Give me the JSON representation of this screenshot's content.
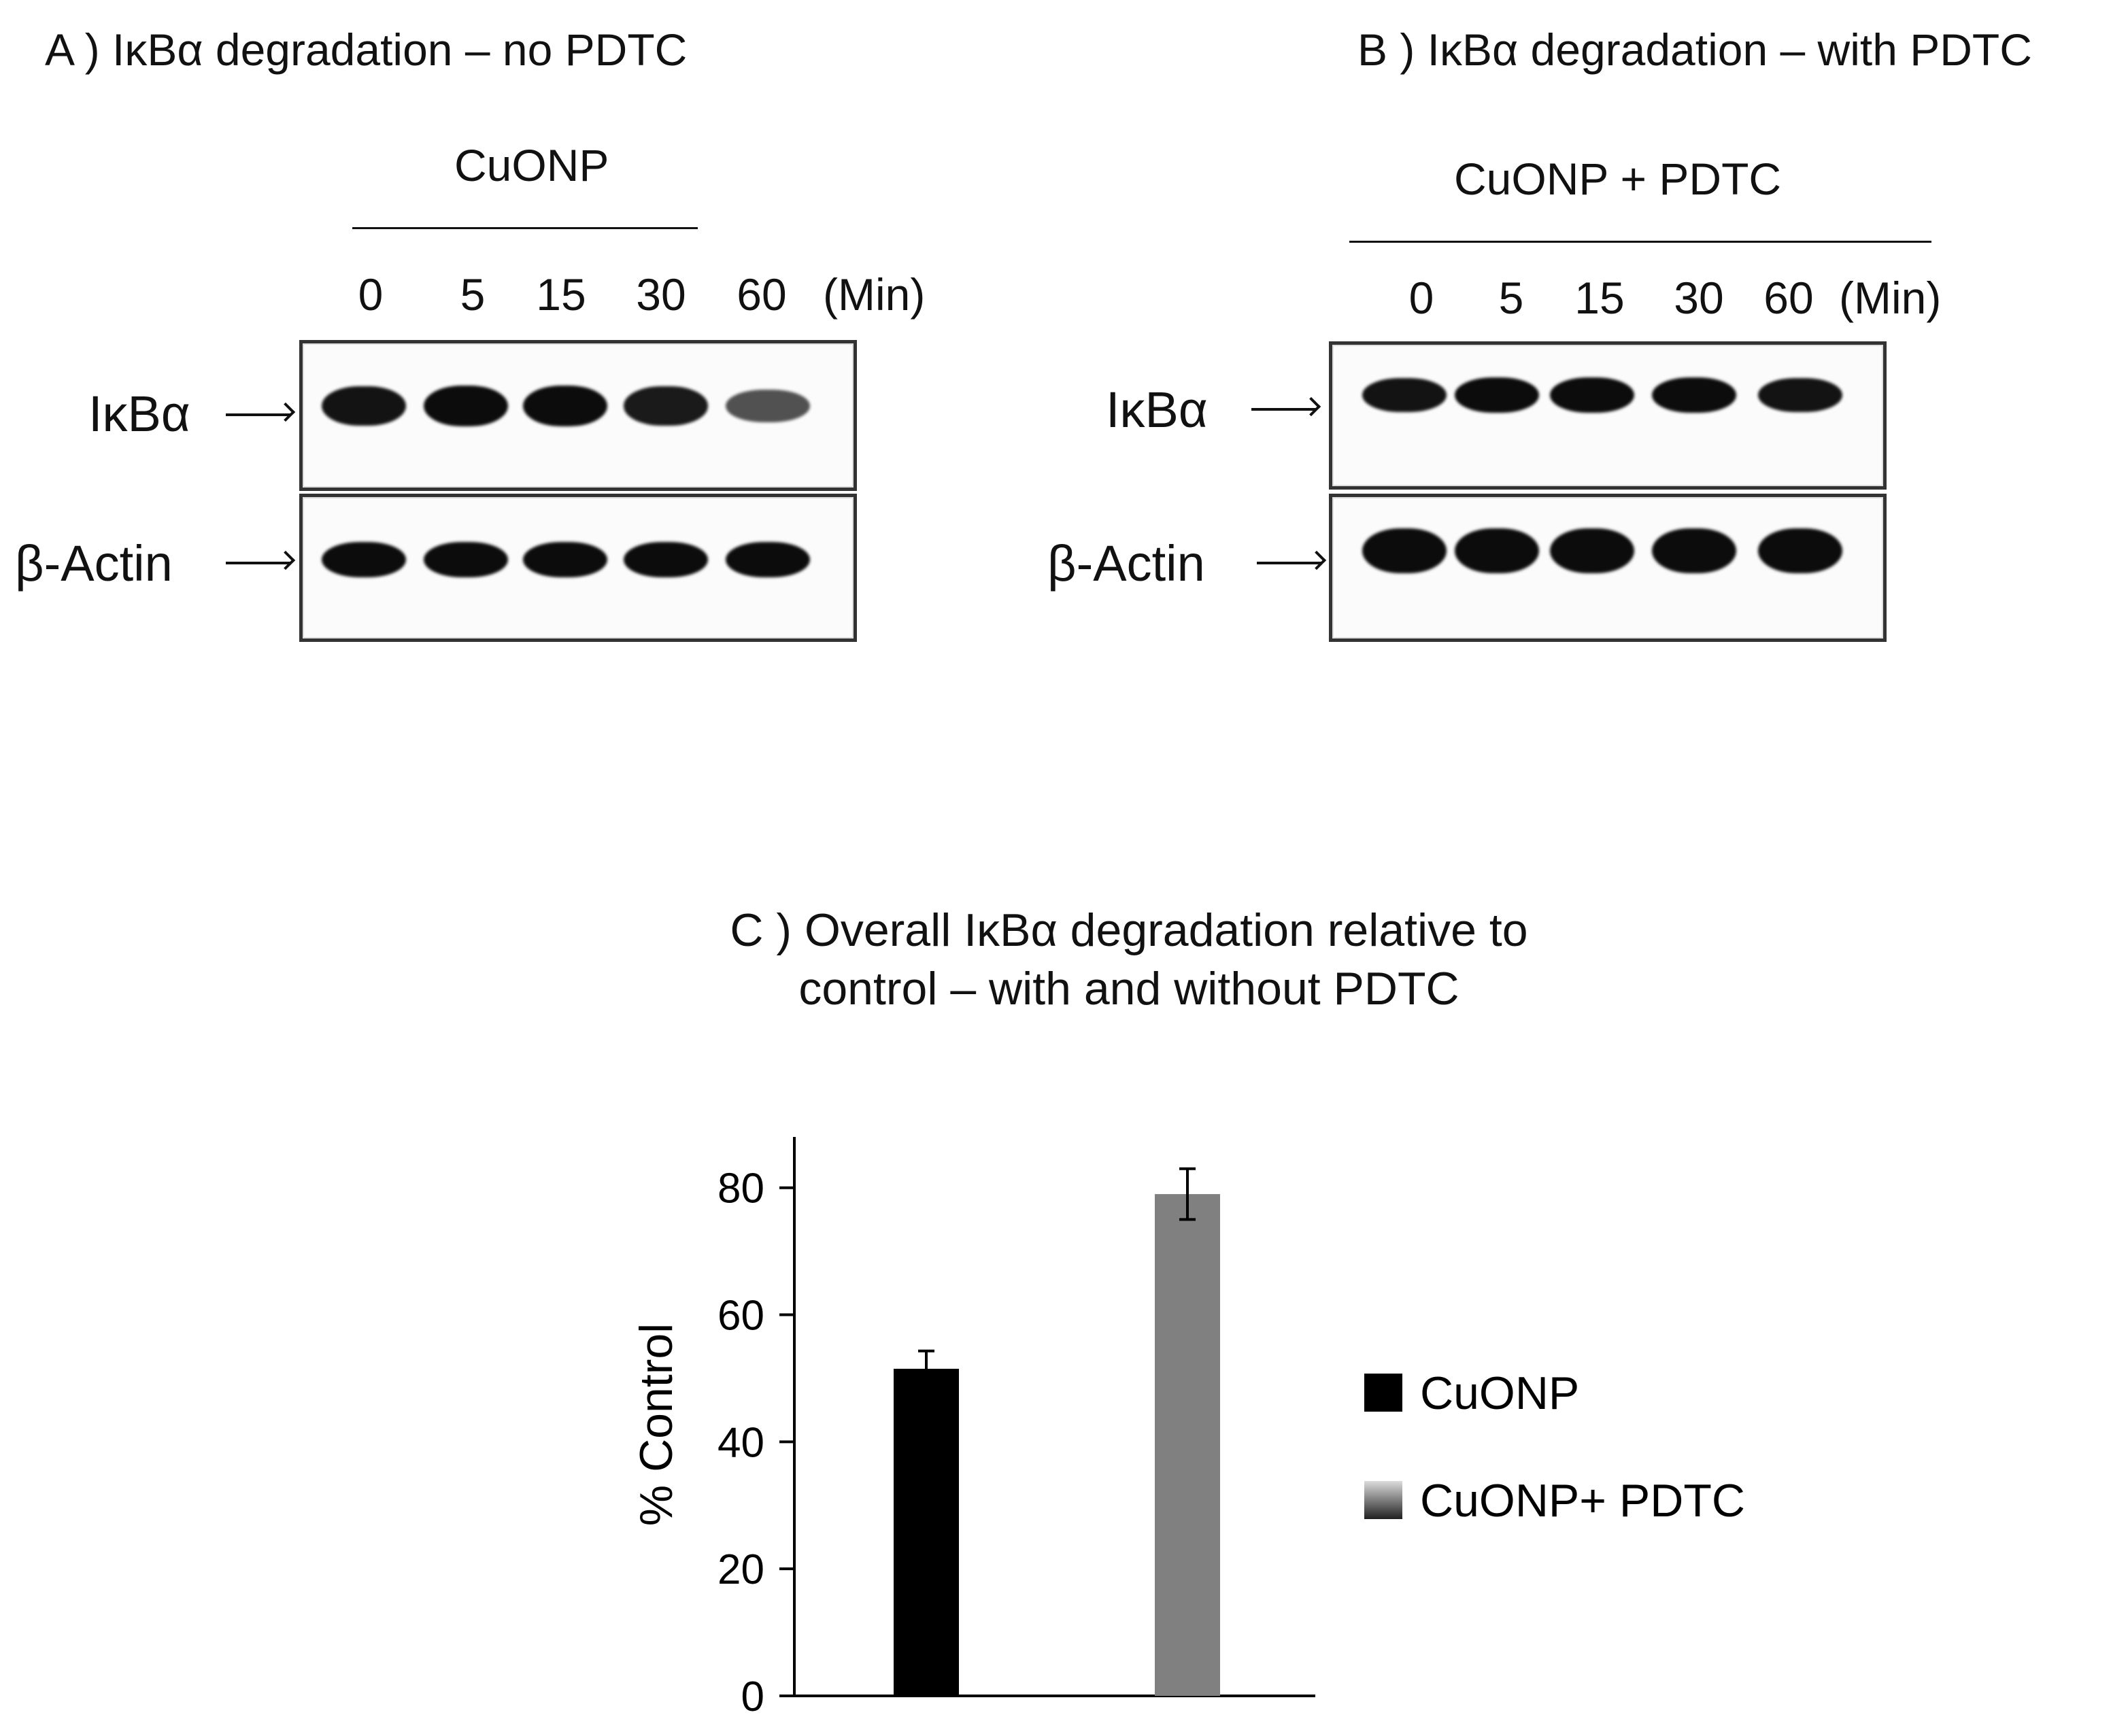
{
  "panel_a": {
    "title": "A ) IκBα degradation – no PDTC",
    "treatment": "CuONP",
    "times": [
      "0",
      "5",
      "15",
      "30",
      "60"
    ],
    "time_unit": "(Min)",
    "rows": [
      {
        "label": "IκBα",
        "band_intensity": [
          0.95,
          1.0,
          1.0,
          0.9,
          0.55
        ]
      },
      {
        "label": "β-Actin",
        "band_intensity": [
          1.0,
          1.0,
          1.0,
          1.0,
          1.0
        ]
      }
    ]
  },
  "panel_b": {
    "title": "B ) IκBα degradation – with PDTC",
    "treatment": "CuONP + PDTC",
    "times": [
      "0",
      "5",
      "15",
      "30",
      "60"
    ],
    "time_unit": "(Min)",
    "rows": [
      {
        "label": "IκBα",
        "band_intensity": [
          0.95,
          1.0,
          1.0,
          1.0,
          0.95
        ]
      },
      {
        "label": "β-Actin",
        "band_intensity": [
          1.0,
          1.0,
          1.0,
          1.0,
          1.0
        ]
      }
    ]
  },
  "chart_data": {
    "type": "bar",
    "title": "C ) Overall IκBα degradation relative to control – with and without PDTC",
    "title_lines": [
      "C ) Overall IκBα degradation relative to",
      "control – with and without PDTC"
    ],
    "ylabel": "% Control",
    "ylim": [
      0,
      88
    ],
    "yticks": [
      0,
      20,
      40,
      60,
      80
    ],
    "legend_position": "right",
    "series": [
      {
        "name": "CuONP",
        "value": 51.5,
        "error": 2.8,
        "color": "#000000"
      },
      {
        "name": "CuONP+ PDTC",
        "value": 79,
        "error": 4,
        "color": "#808080"
      }
    ]
  }
}
